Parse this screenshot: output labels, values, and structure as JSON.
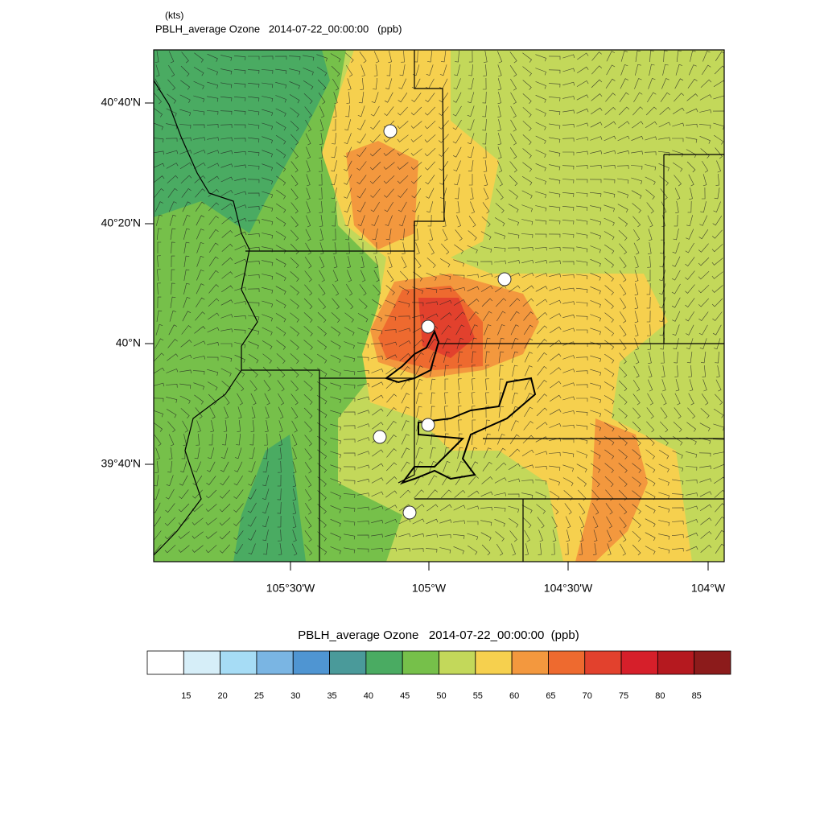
{
  "header": {
    "units": "(kts)",
    "title": "PBLH_average Ozone   2014-07-22_00:00:00   (ppb)"
  },
  "map": {
    "lat_labels": [
      "40°40'N",
      "40°20'N",
      "40°N",
      "39°40'N"
    ],
    "lon_labels": [
      "105°30'W",
      "105°W",
      "104°30'W",
      "104°W"
    ]
  },
  "colorbar": {
    "title": "PBLH_average Ozone   2014-07-22_00:00:00  (ppb)",
    "colors": [
      "#ffffff",
      "#d6eef8",
      "#a6dcf5",
      "#7ab5e3",
      "#4f95d2",
      "#4a9a9a",
      "#4aab62",
      "#76c04a",
      "#c3d85a",
      "#f6d04e",
      "#f3983e",
      "#ee6a2f",
      "#e2412d",
      "#d61f2a",
      "#b5191f",
      "#8c1b1b"
    ],
    "levels": [
      15,
      20,
      25,
      30,
      35,
      40,
      45,
      50,
      55,
      60,
      65,
      70,
      75,
      80,
      85
    ]
  }
}
